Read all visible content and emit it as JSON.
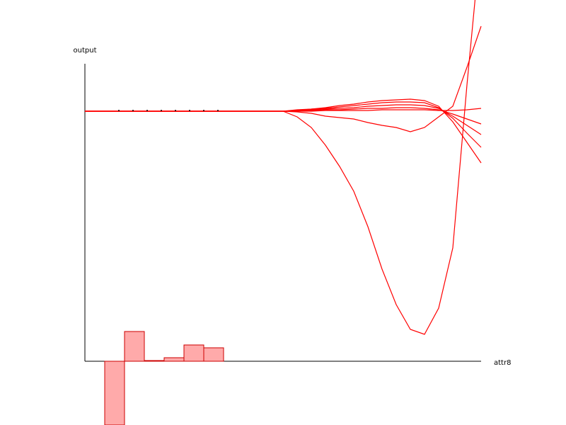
{
  "chart_data": [
    {
      "type": "line",
      "y_label": "output",
      "x_label": "attr8",
      "xlim": [
        0,
        56
      ],
      "ylim": [
        -0.9,
        5.1
      ],
      "grid": false,
      "x": [
        0,
        2,
        4,
        6,
        8,
        10,
        12,
        14,
        16,
        18,
        20,
        22,
        24,
        26,
        28,
        30,
        32,
        34,
        36,
        38,
        40,
        42,
        44,
        46,
        48,
        50,
        52,
        54,
        56
      ],
      "series": [
        {
          "color": "#ff0000",
          "values": [
            3.53,
            3.53,
            3.53,
            3.53,
            3.53,
            3.53,
            3.53,
            3.53,
            3.53,
            3.53,
            3.53,
            3.53,
            3.53,
            3.53,
            3.53,
            3.45,
            3.3,
            3.05,
            2.75,
            2.4,
            1.9,
            1.3,
            0.8,
            0.45,
            0.38,
            0.75,
            1.6,
            3.9,
            6.0
          ]
        },
        {
          "color": "#ff0000",
          "values": [
            3.53,
            3.53,
            3.53,
            3.53,
            3.53,
            3.53,
            3.53,
            3.53,
            3.53,
            3.53,
            3.53,
            3.53,
            3.53,
            3.53,
            3.53,
            3.52,
            3.5,
            3.46,
            3.44,
            3.42,
            3.37,
            3.33,
            3.3,
            3.24,
            3.3,
            3.45,
            3.6,
            4.15,
            4.73
          ]
        },
        {
          "color": "#ff0000",
          "values": [
            3.53,
            3.53,
            3.53,
            3.53,
            3.53,
            3.53,
            3.53,
            3.53,
            3.53,
            3.53,
            3.53,
            3.53,
            3.53,
            3.53,
            3.53,
            3.55,
            3.56,
            3.58,
            3.61,
            3.63,
            3.66,
            3.68,
            3.69,
            3.7,
            3.68,
            3.6,
            3.38,
            3.09,
            2.8
          ]
        },
        {
          "color": "#ff0000",
          "values": [
            3.53,
            3.53,
            3.53,
            3.53,
            3.53,
            3.53,
            3.53,
            3.53,
            3.53,
            3.53,
            3.53,
            3.53,
            3.53,
            3.53,
            3.53,
            3.54,
            3.56,
            3.57,
            3.59,
            3.61,
            3.63,
            3.65,
            3.66,
            3.66,
            3.65,
            3.58,
            3.43,
            3.22,
            3.02
          ]
        },
        {
          "color": "#ff0000",
          "values": [
            3.53,
            3.53,
            3.53,
            3.53,
            3.53,
            3.53,
            3.53,
            3.53,
            3.53,
            3.53,
            3.53,
            3.53,
            3.53,
            3.53,
            3.53,
            3.54,
            3.55,
            3.56,
            3.57,
            3.58,
            3.6,
            3.61,
            3.62,
            3.62,
            3.61,
            3.57,
            3.46,
            3.33,
            3.2
          ]
        },
        {
          "color": "#ff0000",
          "values": [
            3.53,
            3.53,
            3.53,
            3.53,
            3.53,
            3.53,
            3.53,
            3.53,
            3.53,
            3.53,
            3.53,
            3.53,
            3.53,
            3.53,
            3.53,
            3.53,
            3.54,
            3.55,
            3.55,
            3.56,
            3.57,
            3.57,
            3.58,
            3.58,
            3.57,
            3.55,
            3.49,
            3.42,
            3.35
          ]
        },
        {
          "color": "#ff0000",
          "values": [
            3.53,
            3.53,
            3.53,
            3.53,
            3.53,
            3.53,
            3.53,
            3.53,
            3.53,
            3.53,
            3.53,
            3.53,
            3.53,
            3.53,
            3.53,
            3.53,
            3.53,
            3.54,
            3.54,
            3.54,
            3.54,
            3.55,
            3.55,
            3.55,
            3.55,
            3.54,
            3.54,
            3.55,
            3.57
          ]
        }
      ]
    },
    {
      "type": "histogram",
      "xlim": [
        0,
        56
      ],
      "ylim": [
        -0.9,
        5.1
      ],
      "color": "#ffaaaa",
      "edgecolor": "#cc0000",
      "bins": [
        2.8,
        5.6,
        8.4,
        11.2,
        14,
        16.8,
        19.6
      ],
      "counts": [
        -0.9,
        0.42,
        0.01,
        0.05,
        0.23,
        0.19
      ]
    },
    {
      "type": "scatter",
      "xlim": [
        0,
        56
      ],
      "ylim": [
        -0.9,
        5.1
      ],
      "color": "#000000",
      "x": [
        4.8,
        6.8,
        8.8,
        10.8,
        12.8,
        14.8,
        16.8,
        18.8
      ],
      "values": [
        3.54,
        3.54,
        3.54,
        3.54,
        3.54,
        3.54,
        3.54,
        3.54
      ]
    }
  ]
}
